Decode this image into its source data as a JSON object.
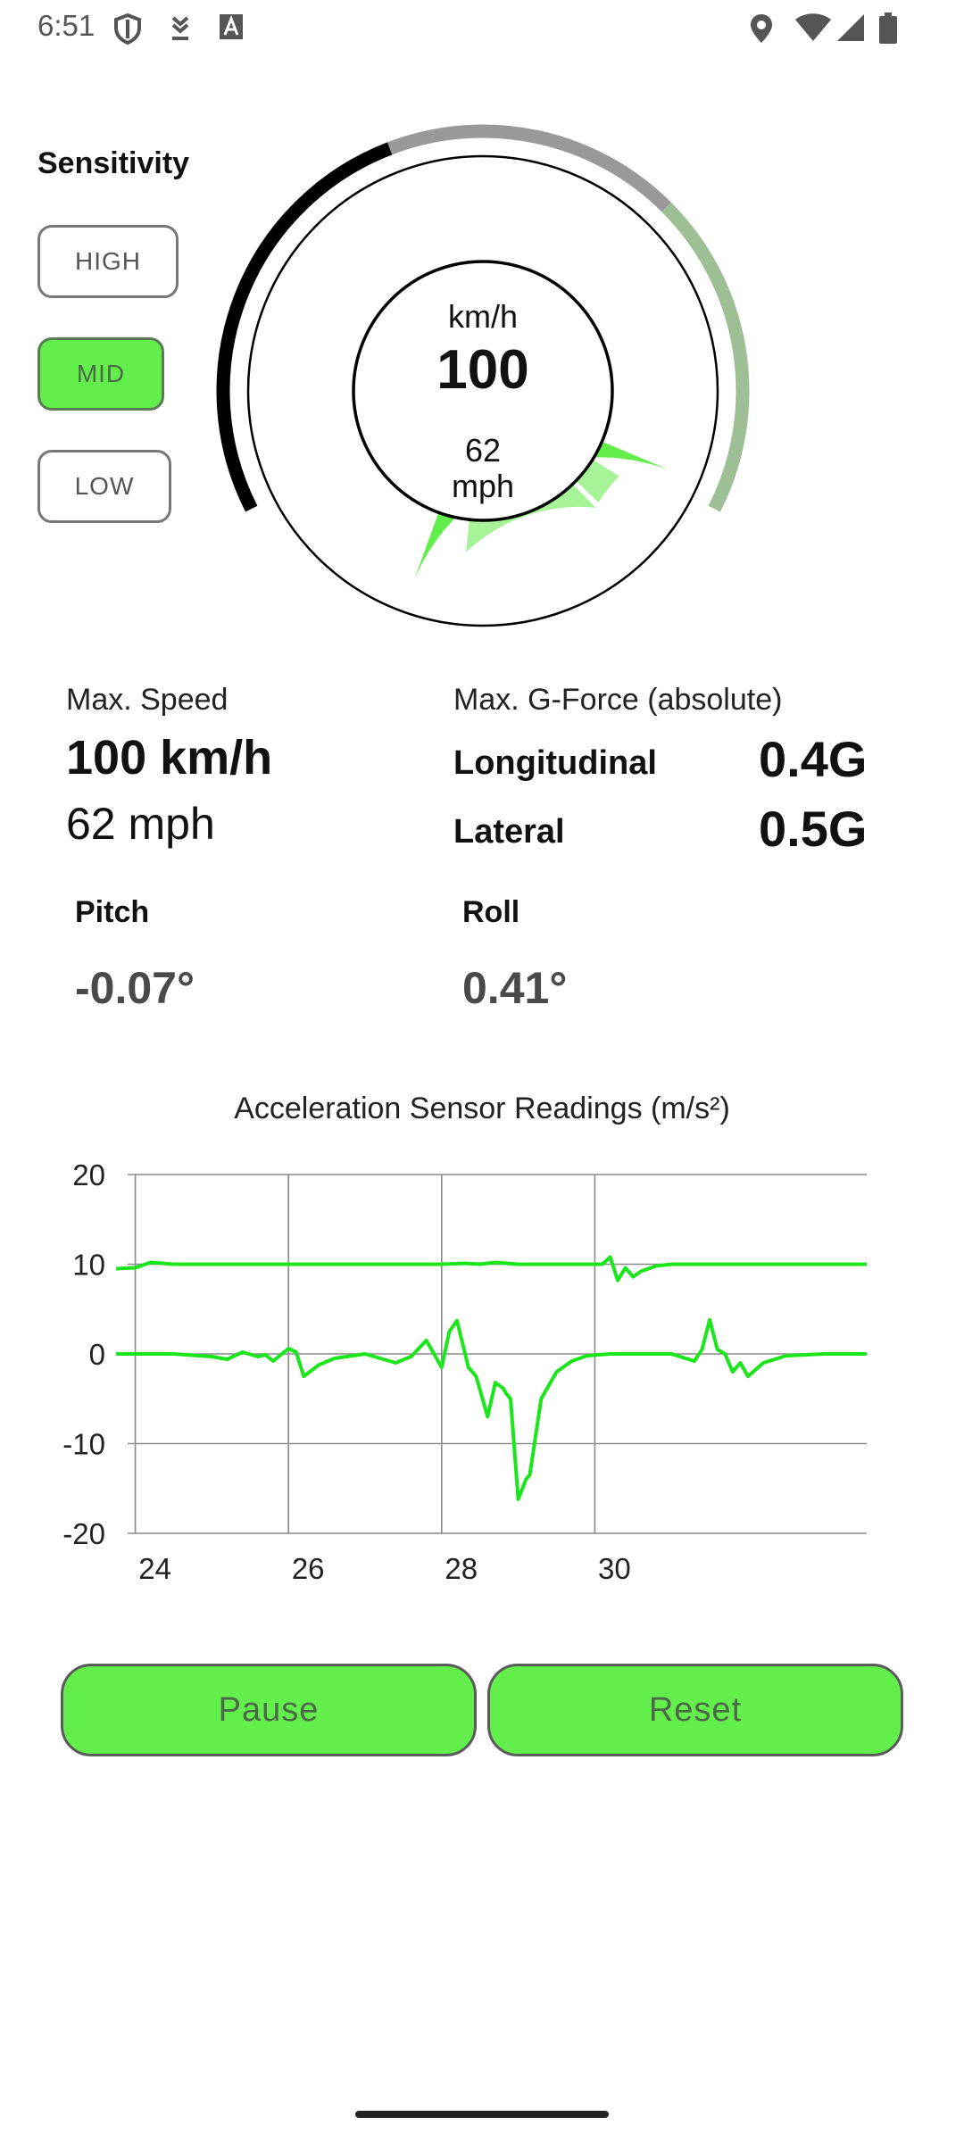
{
  "status_bar": {
    "time": "6:51",
    "left_icons": [
      "shield-icon",
      "download-icon",
      "a-box-icon"
    ],
    "right_icons": [
      "location-icon",
      "wifi-icon",
      "signal-icon",
      "battery-icon"
    ]
  },
  "sensitivity": {
    "label": "Sensitivity",
    "options": [
      "HIGH",
      "MID",
      "LOW"
    ],
    "selected": "MID"
  },
  "gauge": {
    "unit_kmh": "km/h",
    "speed_kmh": "100",
    "speed_mph": "62",
    "unit_mph": "mph",
    "colors": {
      "low_band": "#000000",
      "mid_band": "#999999",
      "high_band": "#9ebf96",
      "needle_fill": "#63ef4b",
      "needle_light": "#a6f497"
    }
  },
  "stats": {
    "max_speed_label": "Max. Speed",
    "max_speed_kmh": "100 km/h",
    "max_speed_mph": "62 mph",
    "gforce_label": "Max. G-Force (absolute)",
    "longitudinal_label": "Longitudinal",
    "longitudinal_value": "0.4G",
    "lateral_label": "Lateral",
    "lateral_value": "0.5G",
    "pitch_label": "Pitch",
    "pitch_value": "-0.07°",
    "roll_label": "Roll",
    "roll_value": "0.41°"
  },
  "chart_data": {
    "type": "line",
    "title": "Acceleration Sensor Readings (m/s²)",
    "xlabel": "",
    "ylabel": "",
    "xlim": [
      23.9,
      33.55
    ],
    "ylim": [
      -20,
      20
    ],
    "x_ticks": [
      24,
      26,
      28,
      30
    ],
    "y_ticks": [
      20,
      10,
      0,
      -10,
      -20
    ],
    "grid": true,
    "color": "#1be51b",
    "series": [
      {
        "x": [
          23.75,
          24.0,
          24.2,
          24.5,
          25.0,
          26.0,
          27.0,
          28.0,
          28.3,
          28.5,
          28.7,
          29.0,
          29.5,
          29.8,
          30.0,
          30.1,
          30.2,
          30.3,
          30.4,
          30.5,
          30.6,
          30.8,
          31.0,
          32.0,
          33.0,
          33.55
        ],
        "y": [
          9.5,
          9.6,
          10.2,
          10.0,
          10.0,
          10.0,
          10.0,
          10.0,
          10.1,
          10.0,
          10.2,
          10.0,
          10.0,
          10.0,
          10.0,
          10.0,
          10.8,
          8.2,
          9.6,
          8.6,
          9.2,
          9.8,
          10.0,
          10.0,
          10.0,
          10.0
        ]
      },
      {
        "x": [
          23.75,
          24.5,
          25.0,
          25.2,
          25.4,
          25.6,
          25.7,
          25.8,
          26.0,
          26.1,
          26.2,
          26.4,
          26.6,
          27.0,
          27.2,
          27.4,
          27.6,
          27.8,
          27.9,
          28.0,
          28.1,
          28.2,
          28.35,
          28.45,
          28.6,
          28.7,
          28.8,
          28.85,
          28.9,
          29.0,
          29.1,
          29.15,
          29.3,
          29.5,
          29.7,
          29.9,
          30.2,
          30.5,
          31.0,
          31.3,
          31.4,
          31.5,
          31.6,
          31.7,
          31.8,
          31.9,
          32.0,
          32.2,
          32.5,
          33.0,
          33.55
        ],
        "y": [
          0.0,
          0.0,
          -0.3,
          -0.6,
          0.2,
          -0.3,
          -0.1,
          -0.8,
          0.6,
          0.2,
          -2.5,
          -1.2,
          -0.5,
          0.0,
          -0.5,
          -1.0,
          -0.3,
          1.5,
          0.0,
          -1.5,
          2.5,
          3.7,
          -1.5,
          -2.5,
          -7.0,
          -3.2,
          -3.8,
          -4.5,
          -5.0,
          -16.2,
          -14.0,
          -13.5,
          -5.0,
          -2.0,
          -0.8,
          -0.2,
          0.0,
          0.0,
          0.0,
          -0.8,
          0.5,
          3.8,
          0.5,
          0.0,
          -2.0,
          -1.0,
          -2.5,
          -1.0,
          -0.2,
          0.0,
          0.0
        ]
      }
    ]
  },
  "buttons": {
    "pause": "Pause",
    "reset": "Reset"
  }
}
